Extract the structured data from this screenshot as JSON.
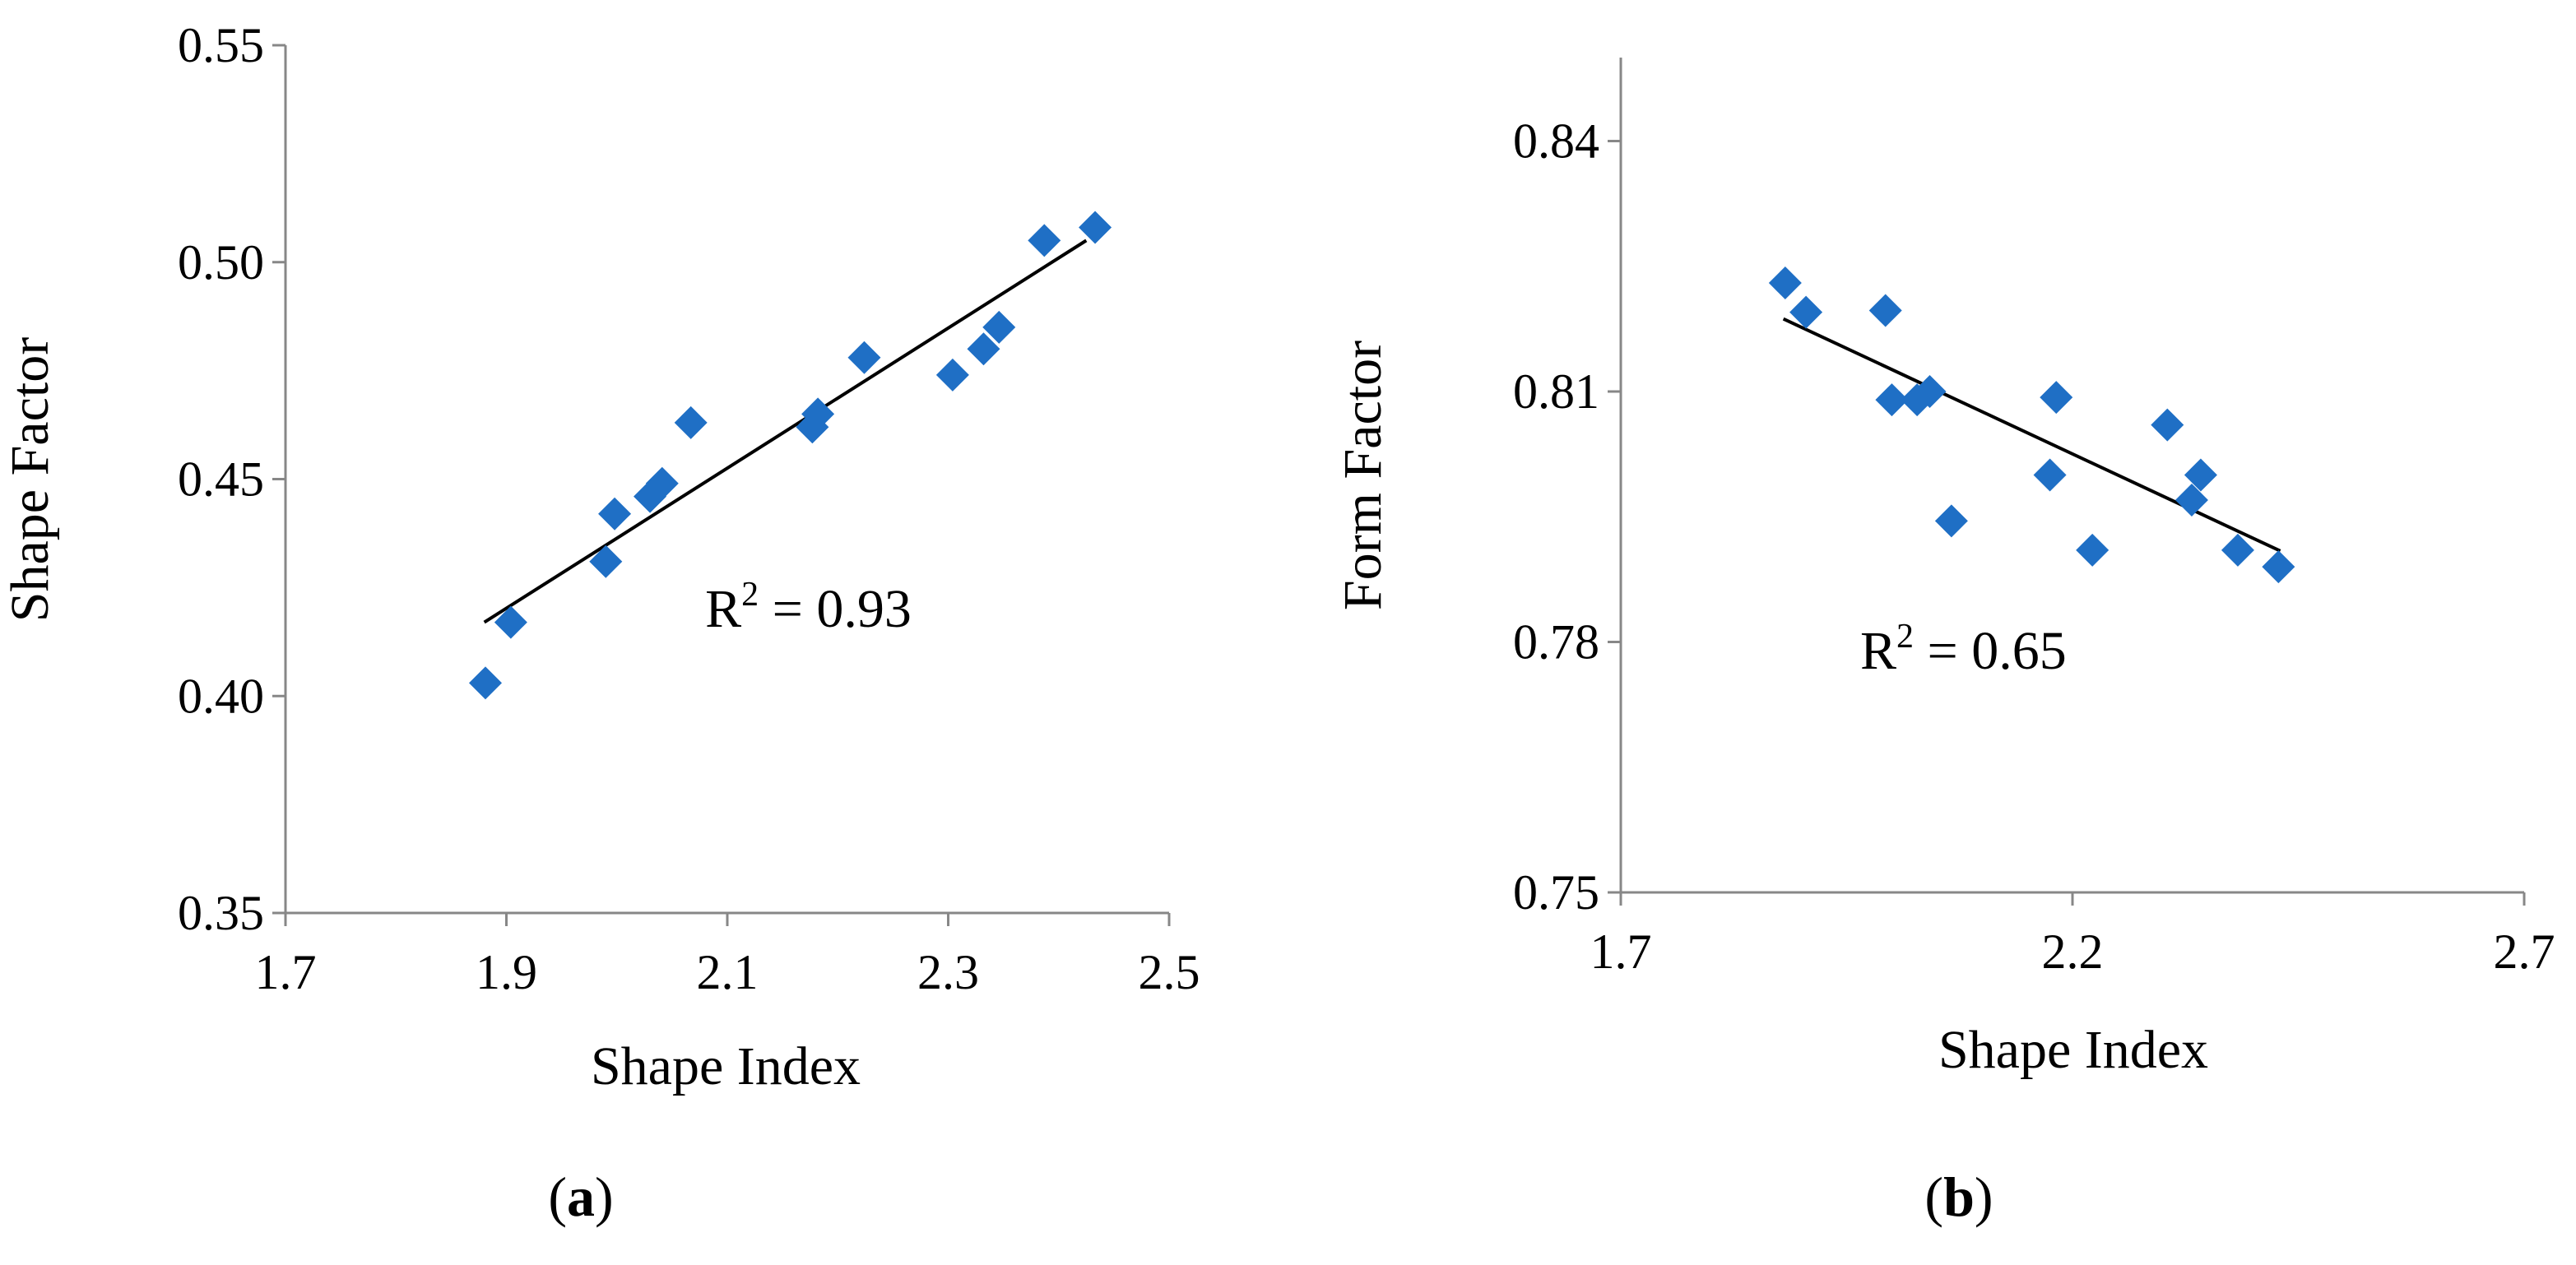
{
  "chart_data": [
    {
      "type": "scatter",
      "panel_label": "a",
      "xlabel": "Shape Index",
      "ylabel": "Shape Factor",
      "xlim": [
        1.7,
        2.5
      ],
      "ylim": [
        0.35,
        0.55
      ],
      "x_ticks": [
        1.7,
        1.9,
        2.1,
        2.3,
        2.5
      ],
      "x_tick_labels": [
        "1.7",
        "1.9",
        "2.1",
        "2.3",
        "2.5"
      ],
      "y_ticks": [
        0.35,
        0.4,
        0.45,
        0.5,
        0.55
      ],
      "y_tick_labels": [
        "0.35",
        "0.40",
        "0.45",
        "0.50",
        "0.55"
      ],
      "grid": false,
      "marker": "diamond",
      "marker_color": "#1f6fc5",
      "points": [
        {
          "x": 1.881,
          "y": 0.403
        },
        {
          "x": 1.904,
          "y": 0.417
        },
        {
          "x": 1.99,
          "y": 0.431
        },
        {
          "x": 1.998,
          "y": 0.442
        },
        {
          "x": 2.03,
          "y": 0.446
        },
        {
          "x": 2.041,
          "y": 0.449
        },
        {
          "x": 2.067,
          "y": 0.463
        },
        {
          "x": 2.177,
          "y": 0.462
        },
        {
          "x": 2.182,
          "y": 0.465
        },
        {
          "x": 2.224,
          "y": 0.478
        },
        {
          "x": 2.304,
          "y": 0.474
        },
        {
          "x": 2.332,
          "y": 0.48
        },
        {
          "x": 2.346,
          "y": 0.485
        },
        {
          "x": 2.387,
          "y": 0.505
        },
        {
          "x": 2.433,
          "y": 0.508
        }
      ],
      "trendline": {
        "x": [
          1.88,
          2.425
        ],
        "y": [
          0.417,
          0.505
        ],
        "color": "#000000"
      },
      "annotation": {
        "text": "R",
        "superscript": "2",
        "suffix": " = 0.93",
        "x": 2.08,
        "y": 0.416
      }
    },
    {
      "type": "scatter",
      "panel_label": "b",
      "xlabel": "Shape Index",
      "ylabel": "Form Factor",
      "xlim": [
        1.7,
        2.7
      ],
      "ylim": [
        0.75,
        0.85
      ],
      "x_ticks": [
        1.7,
        2.2,
        2.7
      ],
      "x_tick_labels": [
        "1.7",
        "2.2",
        "2.7"
      ],
      "y_ticks": [
        0.75,
        0.78,
        0.81,
        0.84
      ],
      "y_tick_labels": [
        "0.75",
        "0.78",
        "0.81",
        "0.84"
      ],
      "grid": false,
      "marker": "diamond",
      "marker_color": "#1f6fc5",
      "points": [
        {
          "x": 1.882,
          "y": 0.823
        },
        {
          "x": 1.905,
          "y": 0.8195
        },
        {
          "x": 1.993,
          "y": 0.8197
        },
        {
          "x": 2.0,
          "y": 0.809
        },
        {
          "x": 2.028,
          "y": 0.809
        },
        {
          "x": 2.042,
          "y": 0.81
        },
        {
          "x": 2.066,
          "y": 0.7945
        },
        {
          "x": 2.175,
          "y": 0.8
        },
        {
          "x": 2.182,
          "y": 0.8093
        },
        {
          "x": 2.222,
          "y": 0.791
        },
        {
          "x": 2.305,
          "y": 0.806
        },
        {
          "x": 2.332,
          "y": 0.797
        },
        {
          "x": 2.342,
          "y": 0.8
        },
        {
          "x": 2.383,
          "y": 0.791
        },
        {
          "x": 2.428,
          "y": 0.789
        }
      ],
      "trendline": {
        "x": [
          1.88,
          2.43
        ],
        "y": [
          0.8187,
          0.7909
        ],
        "color": "#000000"
      },
      "annotation": {
        "text": "R",
        "superscript": "2",
        "suffix": " = 0.65",
        "x": 1.965,
        "y": 0.7768
      }
    }
  ]
}
